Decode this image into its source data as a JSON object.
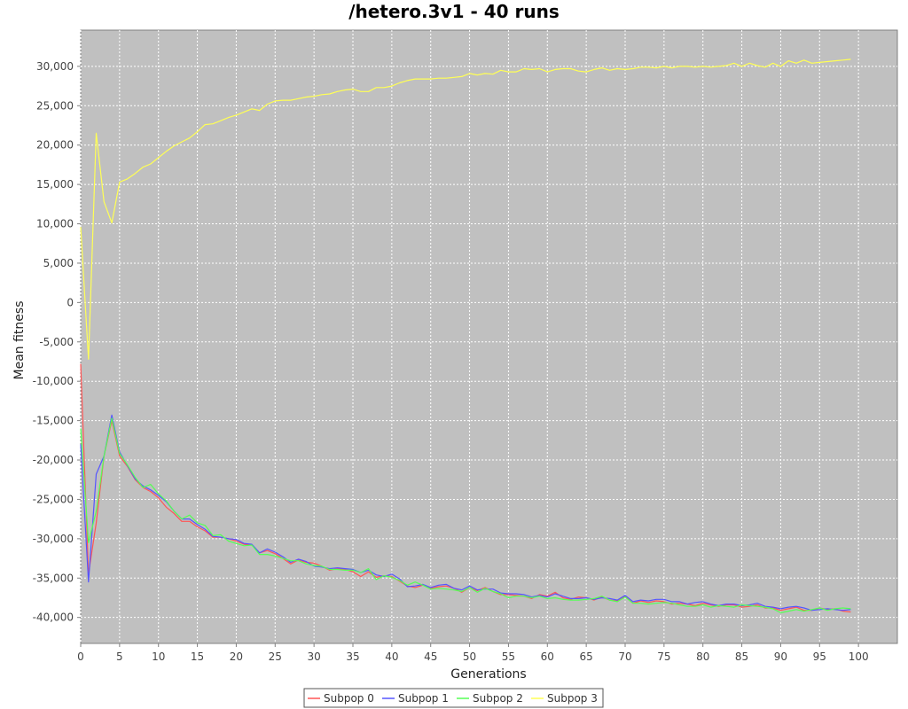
{
  "chart_data": {
    "type": "line",
    "title": "/hetero.3v1 - 40 runs",
    "xlabel": "Generations",
    "ylabel": "Mean fitness",
    "xlim": [
      0,
      105
    ],
    "ylim": [
      -43300,
      34600
    ],
    "x_ticks": [
      0,
      5,
      10,
      15,
      20,
      25,
      30,
      35,
      40,
      45,
      50,
      55,
      60,
      65,
      70,
      75,
      80,
      85,
      90,
      95,
      100
    ],
    "y_ticks": [
      -40000,
      -35000,
      -30000,
      -25000,
      -20000,
      -15000,
      -10000,
      -5000,
      0,
      5000,
      10000,
      15000,
      20000,
      25000,
      30000
    ],
    "y_tick_labels": [
      "-40,000",
      "-35,000",
      "-30,000",
      "-25,000",
      "-20,000",
      "-15,000",
      "-10,000",
      "-5,000",
      "0",
      "5,000",
      "10,000",
      "15,000",
      "20,000",
      "25,000",
      "30,000"
    ],
    "x_tick_labels": [
      "0",
      "5",
      "10",
      "15",
      "20",
      "25",
      "30",
      "35",
      "40",
      "45",
      "50",
      "55",
      "60",
      "65",
      "70",
      "75",
      "80",
      "85",
      "90",
      "95",
      "100"
    ],
    "grid": true,
    "legend_position": "bottom",
    "background_color": "#c0c0c0",
    "series": [
      {
        "name": "Subpop 0",
        "color": "#ff5555",
        "values": [
          -7800,
          -34500,
          -28000,
          -19500,
          -15000,
          -19500,
          -20800,
          -22500,
          -23500,
          -24000,
          -24800,
          -26000,
          -26800,
          -27800,
          -27800,
          -28500,
          -29000,
          -29800,
          -29800,
          -30000,
          -30300,
          -30700,
          -30800,
          -31800,
          -31500,
          -31900,
          -32500,
          -33200,
          -32700,
          -33000,
          -33100,
          -33500,
          -34000,
          -33800,
          -33900,
          -34200,
          -34800,
          -34200,
          -34900,
          -34700,
          -34800,
          -35400,
          -36000,
          -36200,
          -35900,
          -36300,
          -36100,
          -36000,
          -36300,
          -36800,
          -36200,
          -36600,
          -36200,
          -36700,
          -37100,
          -37100,
          -37200,
          -37300,
          -37600,
          -37100,
          -37300,
          -36800,
          -37500,
          -37700,
          -37400,
          -37500,
          -37800,
          -37400,
          -37800,
          -37900,
          -37300,
          -38200,
          -37900,
          -38100,
          -37900,
          -38000,
          -38300,
          -38200,
          -38300,
          -38500,
          -38200,
          -38400,
          -38600,
          -38400,
          -38400,
          -38700,
          -38600,
          -38400,
          -38800,
          -38800,
          -39100,
          -38900,
          -38700,
          -39100,
          -39100,
          -38800,
          -39000,
          -38900,
          -39200,
          -39300
        ]
      },
      {
        "name": "Subpop 1",
        "color": "#5555ff",
        "values": [
          -18000,
          -35500,
          -21800,
          -19500,
          -14300,
          -19000,
          -20700,
          -22400,
          -23300,
          -23800,
          -24500,
          -25300,
          -26500,
          -27500,
          -27500,
          -28200,
          -28800,
          -29700,
          -29800,
          -30000,
          -30100,
          -30600,
          -30700,
          -31800,
          -31300,
          -31700,
          -32300,
          -33000,
          -32600,
          -32900,
          -33500,
          -33600,
          -33800,
          -33700,
          -33800,
          -33900,
          -34300,
          -34000,
          -34600,
          -34800,
          -34500,
          -35100,
          -36100,
          -36000,
          -35800,
          -36200,
          -35900,
          -35800,
          -36300,
          -36500,
          -36000,
          -36500,
          -36400,
          -36400,
          -36900,
          -37000,
          -37000,
          -37100,
          -37400,
          -37200,
          -37400,
          -37000,
          -37300,
          -37600,
          -37600,
          -37500,
          -37700,
          -37500,
          -37600,
          -37800,
          -37200,
          -38000,
          -37800,
          -37900,
          -37700,
          -37700,
          -38000,
          -38000,
          -38300,
          -38100,
          -38000,
          -38300,
          -38500,
          -38300,
          -38300,
          -38500,
          -38400,
          -38200,
          -38600,
          -38700,
          -38900,
          -38700,
          -38600,
          -38800,
          -39100,
          -39000,
          -38900,
          -39000,
          -39100,
          -39000
        ]
      },
      {
        "name": "Subpop 2",
        "color": "#55ff55",
        "values": [
          -16000,
          -30500,
          -26500,
          -19500,
          -14700,
          -19200,
          -20600,
          -22200,
          -23500,
          -23100,
          -24300,
          -25200,
          -26500,
          -27500,
          -27000,
          -28000,
          -28300,
          -29600,
          -29500,
          -30300,
          -30600,
          -30900,
          -30800,
          -32000,
          -32000,
          -32200,
          -32500,
          -32800,
          -32800,
          -33200,
          -33400,
          -33500,
          -33900,
          -33900,
          -34000,
          -34000,
          -34300,
          -33800,
          -35200,
          -34700,
          -34900,
          -35300,
          -35900,
          -35500,
          -35900,
          -36400,
          -36300,
          -36400,
          -36500,
          -36700,
          -36200,
          -36800,
          -36300,
          -36700,
          -37000,
          -37500,
          -37300,
          -37300,
          -37500,
          -37300,
          -37600,
          -37500,
          -37700,
          -37800,
          -37800,
          -37700,
          -37600,
          -37300,
          -37800,
          -38000,
          -37400,
          -38200,
          -38200,
          -38300,
          -38200,
          -38100,
          -38200,
          -38400,
          -38600,
          -38600,
          -38400,
          -38700,
          -38500,
          -38600,
          -38700,
          -38400,
          -38500,
          -38600,
          -38700,
          -38900,
          -39400,
          -39200,
          -39000,
          -39200,
          -39000,
          -38800,
          -39100,
          -38900,
          -38800,
          -38900
        ]
      },
      {
        "name": "Subpop 3",
        "color": "#ffff55",
        "values": [
          9600,
          -7200,
          21500,
          12800,
          10100,
          15300,
          15700,
          16400,
          17200,
          17600,
          18400,
          19200,
          19900,
          20400,
          20900,
          21700,
          22600,
          22700,
          23100,
          23500,
          23800,
          24200,
          24600,
          24400,
          25200,
          25600,
          25700,
          25700,
          25900,
          26100,
          26200,
          26400,
          26500,
          26800,
          27000,
          27100,
          26800,
          26800,
          27300,
          27300,
          27500,
          27900,
          28200,
          28400,
          28400,
          28400,
          28500,
          28500,
          28600,
          28700,
          29100,
          28900,
          29100,
          29000,
          29500,
          29300,
          29300,
          29700,
          29600,
          29700,
          29300,
          29600,
          29700,
          29700,
          29400,
          29300,
          29600,
          29800,
          29500,
          29700,
          29600,
          29700,
          29900,
          29900,
          29800,
          30000,
          29800,
          30000,
          30000,
          29900,
          30000,
          29900,
          30000,
          30100,
          30400,
          30000,
          30400,
          30100,
          29900,
          30400,
          30000,
          30700,
          30400,
          30800,
          30400,
          30500,
          30600,
          30700,
          30800,
          30900
        ]
      }
    ]
  }
}
